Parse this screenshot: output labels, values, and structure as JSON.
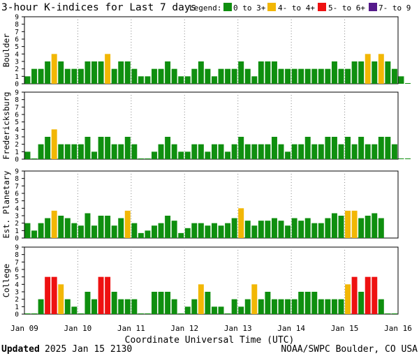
{
  "chart_data": {
    "type": "bar",
    "title": "3-hour K-indices for Last 7 days",
    "legend": {
      "label": "Legend:",
      "items": [
        {
          "label": "0 to 3+",
          "color": "#0f8f0f"
        },
        {
          "label": "4- to 4+",
          "color": "#f2b705"
        },
        {
          "label": "5- to 6+",
          "color": "#ee1111"
        },
        {
          "label": "7- to 9",
          "color": "#551a8b"
        }
      ]
    },
    "xlabel": "Coordinate Universal Time (UTC)",
    "x_ticks": [
      "Jan 09",
      "Jan 10",
      "Jan 11",
      "Jan 12",
      "Jan 13",
      "Jan 14",
      "Jan 15",
      "Jan 16"
    ],
    "y_ticks": [
      "0",
      "1",
      "2",
      "3",
      "4",
      "5",
      "6",
      "7",
      "8",
      "9"
    ],
    "ylim": [
      0,
      9
    ],
    "grid": "vertical dotted, daily",
    "bars_per_day": 8,
    "panels": [
      {
        "name": "Boulder",
        "values": [
          1,
          2,
          2,
          3,
          4,
          3,
          2,
          2,
          2,
          3,
          3,
          3,
          4,
          2,
          3,
          3,
          2,
          1,
          1,
          2,
          2,
          3,
          2,
          1,
          1,
          2,
          3,
          2,
          1,
          2,
          2,
          2,
          3,
          2,
          1,
          3,
          3,
          3,
          2,
          2,
          2,
          2,
          2,
          2,
          2,
          2,
          3,
          2,
          2,
          3,
          3,
          4,
          3,
          4,
          3,
          2,
          1,
          0
        ]
      },
      {
        "name": "Fredericksburg",
        "values": [
          1,
          0,
          2,
          3,
          4,
          2,
          2,
          2,
          2,
          3,
          1,
          3,
          3,
          2,
          2,
          3,
          2,
          0,
          0,
          1,
          2,
          3,
          2,
          1,
          1,
          2,
          2,
          1,
          2,
          2,
          1,
          2,
          3,
          2,
          2,
          2,
          2,
          3,
          2,
          1,
          2,
          2,
          3,
          2,
          2,
          3,
          3,
          2,
          3,
          2,
          3,
          2,
          2,
          3,
          3,
          2,
          0,
          0
        ]
      },
      {
        "name": "Est. Planetary",
        "values": [
          2,
          1,
          2,
          2.67,
          3.67,
          3,
          2.67,
          2,
          1.67,
          3.33,
          1.67,
          3,
          3,
          1.67,
          2.67,
          3.67,
          2,
          0.67,
          1,
          1.67,
          2,
          3,
          2.33,
          0.67,
          1.33,
          2,
          2,
          1.67,
          2,
          1.67,
          2,
          2.67,
          4,
          2.33,
          1.67,
          2.33,
          2.33,
          2.67,
          2.33,
          1.67,
          2.67,
          2.33,
          2.67,
          2,
          2,
          2.67,
          3.33,
          3,
          3.67,
          3.67,
          2.67,
          3,
          3.33,
          2.67
        ]
      },
      {
        "name": "College",
        "values": [
          0,
          0,
          2,
          5,
          5,
          4,
          2,
          1,
          0,
          3,
          2,
          5,
          5,
          3,
          2,
          2,
          2,
          0,
          0,
          3,
          3,
          3,
          2,
          0,
          1,
          2,
          4,
          3,
          1,
          1,
          0,
          2,
          1,
          2,
          4,
          2,
          3,
          2,
          2,
          2,
          2,
          3,
          3,
          3,
          2,
          2,
          2,
          2,
          4,
          5,
          3,
          5,
          5,
          2,
          0,
          0
        ]
      }
    ],
    "footer": {
      "updated_label": "Updated",
      "updated_value": "2025 Jan 15 2130",
      "source": "NOAA/SWPC Boulder, CO USA"
    }
  }
}
